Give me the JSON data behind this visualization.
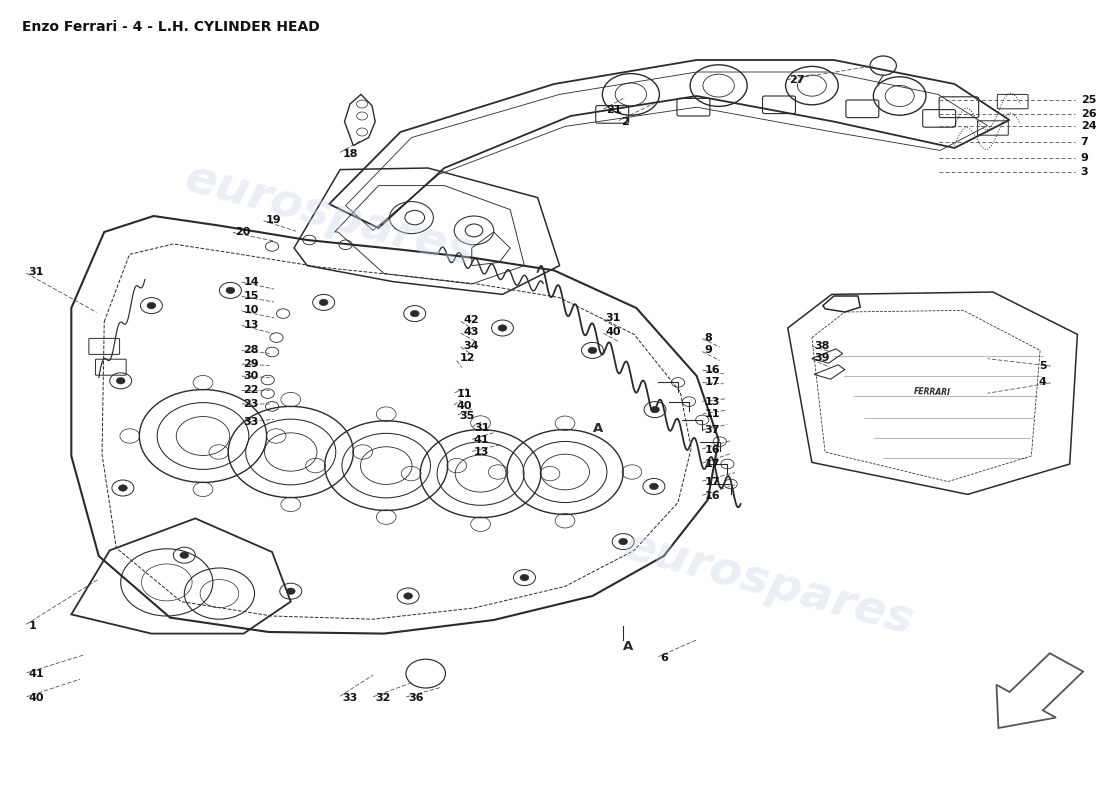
{
  "title": "Enzo Ferrari - 4 - L.H. CYLINDER HEAD",
  "title_fontsize": 10,
  "background_color": "#ffffff",
  "watermark_text": "eurospares",
  "watermark_color": "#c8d4e8",
  "watermark_alpha": 0.38,
  "fig_width": 11.0,
  "fig_height": 8.0,
  "line_color": "#2a2a2a",
  "label_fontsize": 8.0
}
